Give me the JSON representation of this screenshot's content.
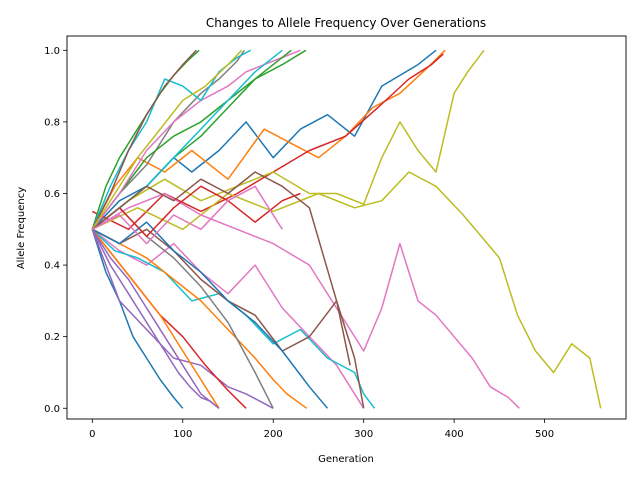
{
  "chart_data": {
    "type": "line",
    "title": "Changes to Allele Frequency Over Generations",
    "xlabel": "Generation",
    "ylabel": "Allele Frequency",
    "xlim": [
      -28,
      590
    ],
    "ylim": [
      -0.03,
      1.04
    ],
    "xticks": [
      0,
      100,
      200,
      300,
      400,
      500
    ],
    "yticks": [
      0.0,
      0.2,
      0.4,
      0.6,
      0.8,
      1.0
    ],
    "grid": false,
    "legend": "none",
    "palette": [
      "#1f77b4",
      "#ff7f0e",
      "#2ca02c",
      "#d62728",
      "#9467bd",
      "#8c564b",
      "#e377c2",
      "#7f7f7f",
      "#bcbd22",
      "#17becf"
    ],
    "series": [
      {
        "color": "#1f77b4",
        "x": [
          0,
          30,
          60,
          90,
          110,
          140,
          170,
          200,
          230,
          260,
          290,
          320,
          340,
          360,
          380
        ],
        "y": [
          0.5,
          0.58,
          0.62,
          0.7,
          0.66,
          0.72,
          0.8,
          0.7,
          0.78,
          0.82,
          0.76,
          0.9,
          0.93,
          0.96,
          1.0
        ]
      },
      {
        "color": "#ff7f0e",
        "x": [
          0,
          25,
          50,
          80,
          110,
          150,
          190,
          220,
          250,
          280,
          310,
          340,
          370,
          390
        ],
        "y": [
          0.5,
          0.62,
          0.7,
          0.66,
          0.72,
          0.64,
          0.78,
          0.74,
          0.7,
          0.76,
          0.84,
          0.88,
          0.95,
          1.0
        ]
      },
      {
        "color": "#d62728",
        "x": [
          0,
          40,
          80,
          120,
          160,
          200,
          240,
          280,
          320,
          350,
          375,
          388
        ],
        "y": [
          0.55,
          0.5,
          0.6,
          0.55,
          0.6,
          0.66,
          0.72,
          0.76,
          0.85,
          0.92,
          0.96,
          0.99
        ]
      },
      {
        "color": "#bcbd22",
        "x": [
          0,
          40,
          80,
          120,
          160,
          200,
          240,
          270,
          300,
          320,
          340,
          360,
          380,
          400,
          415,
          433
        ],
        "y": [
          0.5,
          0.58,
          0.64,
          0.58,
          0.62,
          0.66,
          0.6,
          0.6,
          0.57,
          0.7,
          0.8,
          0.72,
          0.66,
          0.88,
          0.94,
          1.0
        ]
      },
      {
        "color": "#bcbd22",
        "x": [
          0,
          50,
          100,
          150,
          200,
          250,
          290,
          320,
          350,
          380,
          410,
          430,
          450,
          470,
          490,
          510,
          530,
          550,
          562
        ],
        "y": [
          0.5,
          0.56,
          0.5,
          0.6,
          0.55,
          0.6,
          0.56,
          0.58,
          0.66,
          0.62,
          0.54,
          0.48,
          0.42,
          0.26,
          0.16,
          0.1,
          0.18,
          0.14,
          0.0
        ]
      },
      {
        "color": "#e377c2",
        "x": [
          0,
          40,
          80,
          120,
          160,
          200,
          240,
          280,
          300,
          320,
          340,
          360,
          380,
          400,
          420,
          440,
          460,
          472
        ],
        "y": [
          0.5,
          0.56,
          0.6,
          0.54,
          0.5,
          0.46,
          0.4,
          0.24,
          0.16,
          0.28,
          0.46,
          0.3,
          0.26,
          0.2,
          0.14,
          0.06,
          0.03,
          0.0
        ]
      },
      {
        "color": "#e377c2",
        "x": [
          0,
          30,
          60,
          90,
          120,
          150,
          180,
          210,
          240,
          270,
          300
        ],
        "y": [
          0.5,
          0.44,
          0.4,
          0.46,
          0.38,
          0.32,
          0.4,
          0.28,
          0.2,
          0.12,
          0.0
        ]
      },
      {
        "color": "#17becf",
        "x": [
          0,
          25,
          50,
          80,
          110,
          140,
          170,
          200,
          230,
          260,
          290,
          300,
          312
        ],
        "y": [
          0.5,
          0.44,
          0.42,
          0.38,
          0.3,
          0.32,
          0.26,
          0.18,
          0.22,
          0.14,
          0.1,
          0.04,
          0.0
        ]
      },
      {
        "color": "#8c564b",
        "x": [
          0,
          30,
          60,
          90,
          120,
          150,
          180,
          210,
          240,
          270,
          290,
          300
        ],
        "y": [
          0.5,
          0.46,
          0.5,
          0.44,
          0.36,
          0.3,
          0.26,
          0.16,
          0.2,
          0.3,
          0.14,
          0.0
        ]
      },
      {
        "color": "#2ca02c",
        "x": [
          0,
          15,
          30,
          45,
          60,
          75,
          90,
          105,
          118
        ],
        "y": [
          0.5,
          0.62,
          0.7,
          0.76,
          0.82,
          0.88,
          0.93,
          0.97,
          1.0
        ]
      },
      {
        "color": "#9467bd",
        "x": [
          0,
          20,
          40,
          60,
          80,
          95,
          108,
          120,
          130,
          140
        ],
        "y": [
          0.5,
          0.4,
          0.32,
          0.24,
          0.16,
          0.1,
          0.06,
          0.03,
          0.02,
          0.0
        ]
      },
      {
        "color": "#7f7f7f",
        "x": [
          0,
          30,
          60,
          90,
          120,
          140,
          160,
          168
        ],
        "y": [
          0.5,
          0.6,
          0.68,
          0.8,
          0.88,
          0.92,
          0.97,
          1.0
        ]
      },
      {
        "color": "#1f77b4",
        "x": [
          0,
          15,
          30,
          45,
          60,
          75,
          90,
          100
        ],
        "y": [
          0.5,
          0.38,
          0.3,
          0.2,
          0.14,
          0.08,
          0.03,
          0.0
        ]
      },
      {
        "color": "#ff7f0e",
        "x": [
          0,
          30,
          60,
          90,
          120,
          150,
          180,
          200,
          215,
          237
        ],
        "y": [
          0.5,
          0.46,
          0.42,
          0.36,
          0.3,
          0.22,
          0.14,
          0.08,
          0.04,
          0.0
        ]
      },
      {
        "color": "#9467bd",
        "x": [
          0,
          30,
          60,
          90,
          120,
          150,
          170,
          185,
          200
        ],
        "y": [
          0.5,
          0.3,
          0.22,
          0.14,
          0.12,
          0.06,
          0.04,
          0.02,
          0.0
        ]
      },
      {
        "color": "#2ca02c",
        "x": [
          0,
          30,
          60,
          90,
          120,
          150,
          180,
          210,
          236
        ],
        "y": [
          0.5,
          0.6,
          0.7,
          0.76,
          0.8,
          0.86,
          0.92,
          0.96,
          1.0
        ]
      },
      {
        "color": "#e377c2",
        "x": [
          0,
          30,
          60,
          90,
          120,
          150,
          170,
          190,
          210,
          230
        ],
        "y": [
          0.5,
          0.6,
          0.72,
          0.8,
          0.86,
          0.9,
          0.94,
          0.96,
          0.98,
          1.0
        ]
      },
      {
        "color": "#17becf",
        "x": [
          0,
          20,
          40,
          60,
          80,
          100,
          120,
          140,
          160,
          175
        ],
        "y": [
          0.5,
          0.62,
          0.72,
          0.8,
          0.92,
          0.9,
          0.86,
          0.94,
          0.98,
          1.0
        ]
      },
      {
        "color": "#d62728",
        "x": [
          0,
          25,
          50,
          75,
          100,
          125,
          150,
          170
        ],
        "y": [
          0.5,
          0.42,
          0.34,
          0.26,
          0.2,
          0.12,
          0.05,
          0.0
        ]
      },
      {
        "color": "#8c564b",
        "x": [
          0,
          20,
          40,
          60,
          80,
          100,
          115
        ],
        "y": [
          0.5,
          0.6,
          0.72,
          0.82,
          0.9,
          0.96,
          1.0
        ]
      },
      {
        "color": "#bcbd22",
        "x": [
          0,
          25,
          50,
          75,
          100,
          125,
          150,
          165
        ],
        "y": [
          0.5,
          0.6,
          0.7,
          0.78,
          0.86,
          0.9,
          0.96,
          1.0
        ]
      },
      {
        "color": "#1f77b4",
        "x": [
          0,
          30,
          60,
          90,
          120,
          150,
          180,
          210,
          240,
          260
        ],
        "y": [
          0.5,
          0.46,
          0.52,
          0.44,
          0.38,
          0.3,
          0.24,
          0.16,
          0.06,
          0.0
        ]
      },
      {
        "color": "#ff7f0e",
        "x": [
          0,
          25,
          50,
          75,
          100,
          125,
          140
        ],
        "y": [
          0.5,
          0.42,
          0.34,
          0.26,
          0.16,
          0.06,
          0.0
        ]
      },
      {
        "color": "#7f7f7f",
        "x": [
          0,
          30,
          60,
          90,
          120,
          150,
          180,
          200
        ],
        "y": [
          0.5,
          0.56,
          0.48,
          0.42,
          0.34,
          0.24,
          0.1,
          0.0
        ]
      },
      {
        "color": "#2ca02c",
        "x": [
          0,
          30,
          60,
          90,
          120,
          150,
          180,
          200,
          220
        ],
        "y": [
          0.5,
          0.56,
          0.62,
          0.7,
          0.76,
          0.84,
          0.92,
          0.96,
          1.0
        ]
      },
      {
        "color": "#9467bd",
        "x": [
          0,
          20,
          40,
          60,
          80,
          100,
          120,
          140
        ],
        "y": [
          0.5,
          0.42,
          0.36,
          0.28,
          0.2,
          0.12,
          0.04,
          0.0
        ]
      },
      {
        "color": "#17becf",
        "x": [
          0,
          30,
          60,
          90,
          120,
          150,
          180,
          210
        ],
        "y": [
          0.5,
          0.56,
          0.62,
          0.7,
          0.78,
          0.86,
          0.94,
          1.0
        ]
      },
      {
        "color": "#d62728",
        "x": [
          0,
          30,
          60,
          90,
          120,
          150,
          180,
          210,
          230
        ],
        "y": [
          0.5,
          0.56,
          0.48,
          0.56,
          0.62,
          0.58,
          0.52,
          0.58,
          0.6
        ]
      },
      {
        "color": "#8c564b",
        "x": [
          0,
          30,
          60,
          90,
          120,
          150,
          180,
          210,
          240,
          270,
          285
        ],
        "y": [
          0.5,
          0.56,
          0.62,
          0.58,
          0.64,
          0.6,
          0.66,
          0.62,
          0.56,
          0.3,
          0.12
        ]
      },
      {
        "color": "#e377c2",
        "x": [
          0,
          30,
          60,
          90,
          120,
          150,
          180,
          210
        ],
        "y": [
          0.5,
          0.54,
          0.46,
          0.54,
          0.5,
          0.58,
          0.62,
          0.5
        ]
      }
    ]
  }
}
